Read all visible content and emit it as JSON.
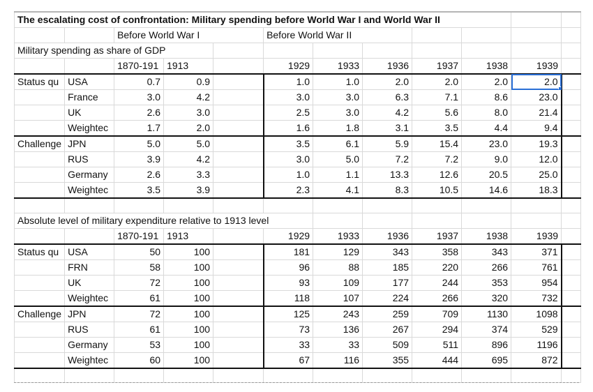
{
  "title": "The escalating cost of confrontation: Military spending before World War I and World War II",
  "period_headers": {
    "ww1": "Before World War I",
    "ww2": "Before World War II"
  },
  "year_headers": [
    "1870-191",
    "1913",
    "",
    "1929",
    "1933",
    "1936",
    "1937",
    "1938",
    "1939"
  ],
  "section1": {
    "title": "Military spending as share of GDP",
    "groups": [
      {
        "label": "Status qu",
        "rows": [
          {
            "country": "USA",
            "values": [
              "0.7",
              "0.9",
              "1.0",
              "1.0",
              "2.0",
              "2.0",
              "2.0",
              "2.0"
            ]
          },
          {
            "country": "France",
            "values": [
              "3.0",
              "4.2",
              "3.0",
              "3.0",
              "6.3",
              "7.1",
              "8.6",
              "23.0"
            ]
          },
          {
            "country": "UK",
            "values": [
              "2.6",
              "3.0",
              "2.5",
              "3.0",
              "4.2",
              "5.6",
              "8.0",
              "21.4"
            ]
          },
          {
            "country": "Weightec",
            "values": [
              "1.7",
              "2.0",
              "1.6",
              "1.8",
              "3.1",
              "3.5",
              "4.4",
              "9.4"
            ]
          }
        ]
      },
      {
        "label": "Challenge",
        "rows": [
          {
            "country": "JPN",
            "values": [
              "5.0",
              "5.0",
              "3.5",
              "6.1",
              "5.9",
              "15.4",
              "23.0",
              "19.3"
            ]
          },
          {
            "country": "RUS",
            "values": [
              "3.9",
              "4.2",
              "3.0",
              "5.0",
              "7.2",
              "7.2",
              "9.0",
              "12.0"
            ]
          },
          {
            "country": "Germany",
            "values": [
              "2.6",
              "3.3",
              "1.0",
              "1.1",
              "13.3",
              "12.6",
              "20.5",
              "25.0"
            ]
          },
          {
            "country": "Weightec",
            "values": [
              "3.5",
              "3.9",
              "2.3",
              "4.1",
              "8.3",
              "10.5",
              "14.6",
              "18.3"
            ]
          }
        ]
      }
    ]
  },
  "section2": {
    "title": "Absolute level of military expenditure relative to 1913 level",
    "groups": [
      {
        "label": "Status qu",
        "rows": [
          {
            "country": "USA",
            "values": [
              "50",
              "100",
              "181",
              "129",
              "343",
              "358",
              "343",
              "371"
            ]
          },
          {
            "country": "FRN",
            "values": [
              "58",
              "100",
              "96",
              "88",
              "185",
              "220",
              "266",
              "761"
            ]
          },
          {
            "country": "UK",
            "values": [
              "72",
              "100",
              "93",
              "109",
              "177",
              "244",
              "353",
              "954"
            ]
          },
          {
            "country": "Weightec",
            "values": [
              "61",
              "100",
              "118",
              "107",
              "224",
              "266",
              "320",
              "732"
            ]
          }
        ]
      },
      {
        "label": "Challenge",
        "rows": [
          {
            "country": "JPN",
            "values": [
              "72",
              "100",
              "125",
              "243",
              "259",
              "709",
              "1130",
              "1098"
            ]
          },
          {
            "country": "RUS",
            "values": [
              "61",
              "100",
              "73",
              "136",
              "267",
              "294",
              "374",
              "529"
            ]
          },
          {
            "country": "Germany",
            "values": [
              "53",
              "100",
              "33",
              "33",
              "509",
              "511",
              "896",
              "1196"
            ]
          },
          {
            "country": "Weightec",
            "values": [
              "60",
              "100",
              "67",
              "116",
              "355",
              "444",
              "695",
              "872"
            ]
          }
        ]
      }
    ]
  },
  "selected_cell": {
    "section": 1,
    "row": "USA",
    "column": "1939",
    "value": "2.0"
  },
  "colors": {
    "gridline": "#d9d9d9",
    "border": "#111111",
    "selection": "#2a6fd6"
  }
}
